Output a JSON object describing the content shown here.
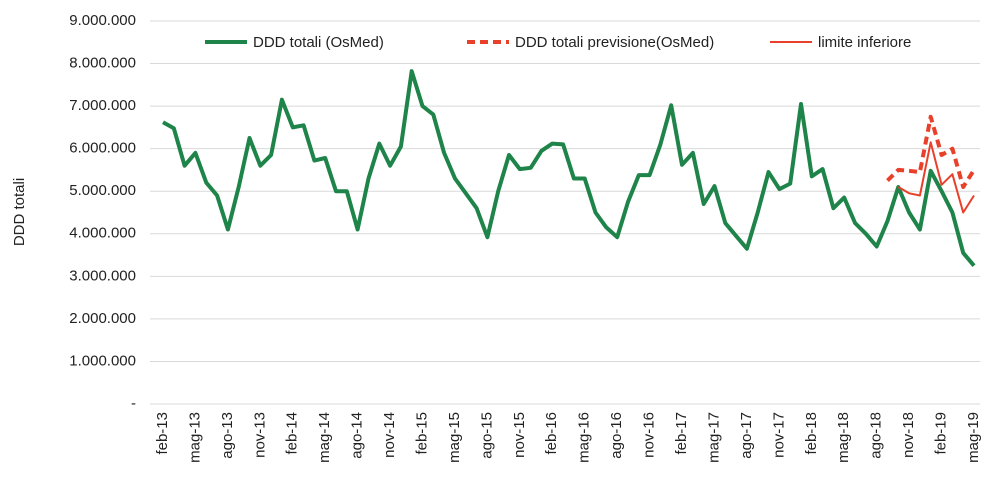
{
  "chart_data": {
    "type": "line",
    "y_label": "DDD totali",
    "categories": [
      "feb-13",
      null,
      null,
      "mag-13",
      null,
      null,
      "ago-13",
      null,
      null,
      "nov-13",
      null,
      null,
      "feb-14",
      null,
      null,
      "mag-14",
      null,
      null,
      "ago-14",
      null,
      null,
      "nov-14",
      null,
      null,
      "feb-15",
      null,
      null,
      "mag-15",
      null,
      null,
      "ago-15",
      null,
      null,
      "nov-15",
      null,
      null,
      "feb-16",
      null,
      null,
      "mag-16",
      null,
      null,
      "ago-16",
      null,
      null,
      "nov-16",
      null,
      null,
      "feb-17",
      null,
      null,
      "mag-17",
      null,
      null,
      "ago-17",
      null,
      null,
      "nov-17",
      null,
      null,
      "feb-18",
      null,
      null,
      "mag-18",
      null,
      null,
      "ago-18",
      null,
      null,
      "nov-18",
      null,
      null,
      "feb-19",
      null,
      null,
      "mag-19"
    ],
    "series": [
      {
        "name": "DDD totali (OsMed)",
        "color": "#1e8449",
        "dash": false,
        "width": 4,
        "values": [
          6620000,
          6480000,
          5600000,
          5900000,
          5200000,
          4900000,
          4100000,
          5100000,
          6250000,
          5600000,
          5850000,
          7150000,
          6500000,
          6550000,
          5720000,
          5780000,
          5000000,
          5000000,
          4100000,
          5300000,
          6120000,
          5600000,
          6050000,
          7820000,
          7000000,
          6800000,
          5900000,
          5300000,
          4950000,
          4600000,
          3920000,
          5000000,
          5850000,
          5520000,
          5550000,
          5950000,
          6120000,
          6100000,
          5300000,
          5300000,
          4500000,
          4150000,
          3920000,
          4750000,
          5380000,
          5380000,
          6100000,
          7020000,
          5620000,
          5900000,
          4700000,
          5120000,
          4250000,
          3950000,
          3650000,
          4500000,
          5450000,
          5050000,
          5180000,
          7050000,
          5350000,
          5520000,
          4600000,
          4850000,
          4250000,
          4000000,
          3700000,
          4300000,
          5100000,
          4500000,
          4100000,
          5480000,
          5000000,
          4500000,
          3550000,
          3250000
        ]
      },
      {
        "name": "DDD totali previsione(OsMed)",
        "color": "#e8402a",
        "dash": true,
        "width": 4,
        "values": [
          null,
          null,
          null,
          null,
          null,
          null,
          null,
          null,
          null,
          null,
          null,
          null,
          null,
          null,
          null,
          null,
          null,
          null,
          null,
          null,
          null,
          null,
          null,
          null,
          null,
          null,
          null,
          null,
          null,
          null,
          null,
          null,
          null,
          null,
          null,
          null,
          null,
          null,
          null,
          null,
          null,
          null,
          null,
          null,
          null,
          null,
          null,
          null,
          null,
          null,
          null,
          null,
          null,
          null,
          null,
          null,
          null,
          null,
          null,
          null,
          null,
          null,
          null,
          null,
          null,
          null,
          null,
          5250000,
          5500000,
          5480000,
          5450000,
          6750000,
          5850000,
          6000000,
          5100000,
          5500000
        ]
      },
      {
        "name": "limite inferiore",
        "color": "#e8402a",
        "dash": false,
        "width": 2,
        "values": [
          null,
          null,
          null,
          null,
          null,
          null,
          null,
          null,
          null,
          null,
          null,
          null,
          null,
          null,
          null,
          null,
          null,
          null,
          null,
          null,
          null,
          null,
          null,
          null,
          null,
          null,
          null,
          null,
          null,
          null,
          null,
          null,
          null,
          null,
          null,
          null,
          null,
          null,
          null,
          null,
          null,
          null,
          null,
          null,
          null,
          null,
          null,
          null,
          null,
          null,
          null,
          null,
          null,
          null,
          null,
          null,
          null,
          null,
          null,
          null,
          null,
          null,
          null,
          null,
          null,
          null,
          null,
          null,
          5100000,
          4950000,
          4900000,
          6150000,
          5150000,
          5400000,
          4500000,
          4900000
        ]
      }
    ],
    "ylim": [
      0,
      9000000
    ],
    "yticks": [
      {
        "value": 0,
        "label": "-"
      },
      {
        "value": 1000000,
        "label": "1.000.000"
      },
      {
        "value": 2000000,
        "label": "2.000.000"
      },
      {
        "value": 3000000,
        "label": "3.000.000"
      },
      {
        "value": 4000000,
        "label": "4.000.000"
      },
      {
        "value": 5000000,
        "label": "5.000.000"
      },
      {
        "value": 6000000,
        "label": "6.000.000"
      },
      {
        "value": 7000000,
        "label": "7.000.000"
      },
      {
        "value": 8000000,
        "label": "8.000.000"
      },
      {
        "value": 9000000,
        "label": "9.000.000"
      }
    ],
    "grid": true,
    "legend": "top"
  }
}
